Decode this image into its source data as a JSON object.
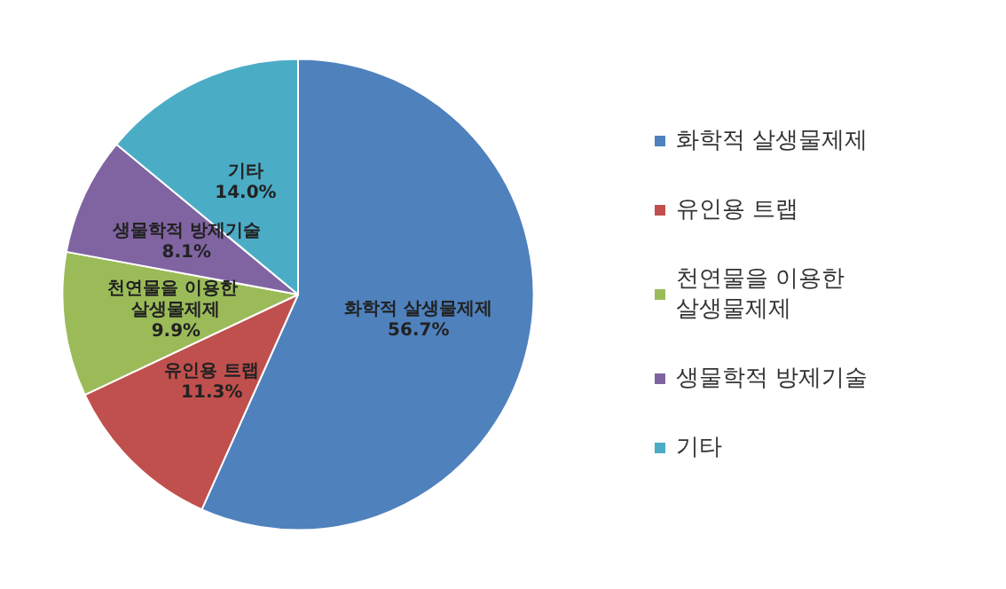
{
  "chart_data": {
    "type": "pie",
    "categories": [
      "화학적 살생물제제",
      "유인용 트랩",
      "천연물을 이용한 살생물제제",
      "생물학적 방제기술",
      "기타"
    ],
    "values": [
      56.7,
      11.3,
      9.9,
      8.1,
      14.0
    ],
    "value_labels": [
      "56.7%",
      "11.3%",
      "9.9%",
      "8.1%",
      "14.0%"
    ],
    "colors": [
      "#4f81bd",
      "#c0504d",
      "#9bbb59",
      "#8064a2",
      "#4bacc6"
    ],
    "legend": "right"
  }
}
